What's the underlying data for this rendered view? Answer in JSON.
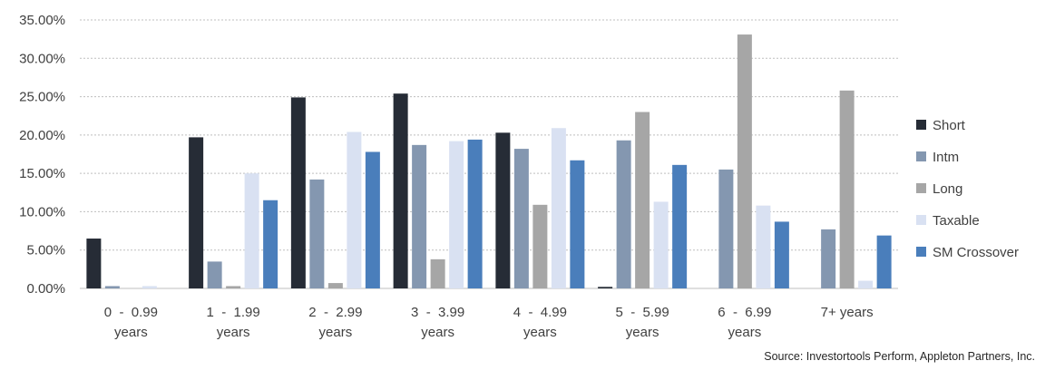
{
  "chart_data": {
    "type": "bar",
    "title": "",
    "xlabel": "",
    "ylabel": "",
    "ylim": [
      0,
      0.35
    ],
    "yticks": [
      "0.00%",
      "5.00%",
      "10.00%",
      "15.00%",
      "20.00%",
      "25.00%",
      "30.00%",
      "35.00%"
    ],
    "grid": true,
    "legend_position": "right",
    "categories": [
      [
        "0  -  0.99",
        "years"
      ],
      [
        "1  -  1.99",
        "years"
      ],
      [
        "2  -  2.99",
        "years"
      ],
      [
        "3  -  3.99",
        "years"
      ],
      [
        "4  -  4.99",
        "years"
      ],
      [
        "5  -  5.99",
        "years"
      ],
      [
        "6  -  6.99",
        "years"
      ],
      [
        "7+ years"
      ]
    ],
    "series": [
      {
        "name": "Short",
        "color": "#262c36",
        "values": [
          0.065,
          0.197,
          0.249,
          0.254,
          0.203,
          0.002,
          0.0,
          0.0
        ]
      },
      {
        "name": "Intm",
        "color": "#8497b0",
        "values": [
          0.003,
          0.035,
          0.142,
          0.187,
          0.182,
          0.193,
          0.155,
          0.077
        ]
      },
      {
        "name": "Long",
        "color": "#a6a6a6",
        "values": [
          0.0,
          0.003,
          0.007,
          0.038,
          0.109,
          0.23,
          0.331,
          0.258
        ]
      },
      {
        "name": "Taxable",
        "color": "#d9e1f2",
        "values": [
          0.003,
          0.15,
          0.204,
          0.192,
          0.209,
          0.113,
          0.108,
          0.01
        ]
      },
      {
        "name": "SM Crossover",
        "color": "#4a7ebb",
        "values": [
          0.0,
          0.115,
          0.178,
          0.194,
          0.167,
          0.161,
          0.087,
          0.069
        ]
      }
    ]
  },
  "source_note": "Source: Investortools Perform, Appleton Partners, Inc."
}
